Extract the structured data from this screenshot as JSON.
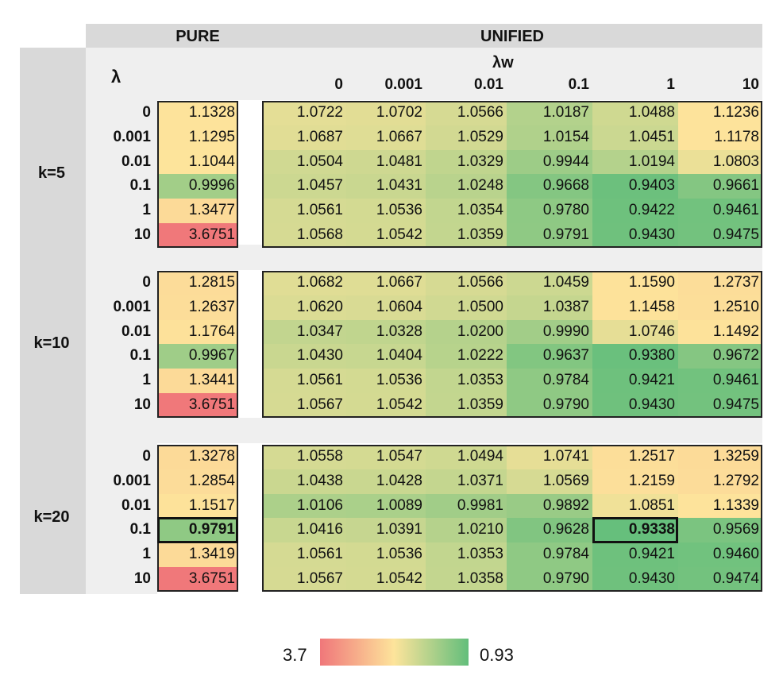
{
  "header": {
    "pure_label": "PURE",
    "unified_label": "UNIFIED",
    "lambda_label": "λ",
    "lambda_w_label": "λw"
  },
  "legend": {
    "high_label": "3.7",
    "low_label": "0.93",
    "color_high": "#f0777a",
    "color_mid": "#fde49b",
    "color_low": "#63be7b"
  },
  "chart_data": {
    "type": "heatmap",
    "title": "",
    "lambda_values": [
      "0",
      "0.001",
      "0.01",
      "0.1",
      "1",
      "10"
    ],
    "lambda_w_values": [
      "0",
      "0.001",
      "0.01",
      "0.1",
      "1",
      "10"
    ],
    "color_scale": {
      "max": 3.7,
      "min": 0.93
    },
    "groups": [
      {
        "k_label": "k=5",
        "pure": [
          "1.1328",
          "1.1295",
          "1.1044",
          "0.9996",
          "1.3477",
          "3.6751"
        ],
        "unified": [
          [
            "1.0722",
            "1.0702",
            "1.0566",
            "1.0187",
            "1.0488",
            "1.1236"
          ],
          [
            "1.0687",
            "1.0667",
            "1.0529",
            "1.0154",
            "1.0451",
            "1.1178"
          ],
          [
            "1.0504",
            "1.0481",
            "1.0329",
            "0.9944",
            "1.0194",
            "1.0803"
          ],
          [
            "1.0457",
            "1.0431",
            "1.0248",
            "0.9668",
            "0.9403",
            "0.9661"
          ],
          [
            "1.0561",
            "1.0536",
            "1.0354",
            "0.9780",
            "0.9422",
            "0.9461"
          ],
          [
            "1.0568",
            "1.0542",
            "1.0359",
            "0.9791",
            "0.9430",
            "0.9475"
          ]
        ]
      },
      {
        "k_label": "k=10",
        "pure": [
          "1.2815",
          "1.2637",
          "1.1764",
          "0.9967",
          "1.3441",
          "3.6751"
        ],
        "unified": [
          [
            "1.0682",
            "1.0667",
            "1.0566",
            "1.0459",
            "1.1590",
            "1.2737"
          ],
          [
            "1.0620",
            "1.0604",
            "1.0500",
            "1.0387",
            "1.1458",
            "1.2510"
          ],
          [
            "1.0347",
            "1.0328",
            "1.0200",
            "0.9990",
            "1.0746",
            "1.1492"
          ],
          [
            "1.0430",
            "1.0404",
            "1.0222",
            "0.9637",
            "0.9380",
            "0.9672"
          ],
          [
            "1.0561",
            "1.0536",
            "1.0353",
            "0.9784",
            "0.9421",
            "0.9461"
          ],
          [
            "1.0567",
            "1.0542",
            "1.0359",
            "0.9790",
            "0.9430",
            "0.9475"
          ]
        ]
      },
      {
        "k_label": "k=20",
        "pure": [
          "1.3278",
          "1.2854",
          "1.1517",
          "0.9791",
          "1.3419",
          "3.6751"
        ],
        "unified": [
          [
            "1.0558",
            "1.0547",
            "1.0494",
            "1.0741",
            "1.2517",
            "1.3259"
          ],
          [
            "1.0438",
            "1.0428",
            "1.0371",
            "1.0569",
            "1.2159",
            "1.2792"
          ],
          [
            "1.0106",
            "1.0089",
            "0.9981",
            "0.9892",
            "1.0851",
            "1.1339"
          ],
          [
            "1.0416",
            "1.0391",
            "1.0210",
            "0.9628",
            "0.9338",
            "0.9569"
          ],
          [
            "1.0561",
            "1.0536",
            "1.0353",
            "0.9784",
            "0.9421",
            "0.9460"
          ],
          [
            "1.0567",
            "1.0542",
            "1.0358",
            "0.9790",
            "0.9430",
            "0.9474"
          ]
        ]
      }
    ],
    "highlighted": [
      {
        "group": "k=20",
        "section": "pure",
        "lambda": "0.1",
        "value": "0.9791"
      },
      {
        "group": "k=20",
        "section": "unified",
        "lambda": "0.1",
        "lambda_w": "1",
        "value": "0.9338"
      }
    ]
  }
}
